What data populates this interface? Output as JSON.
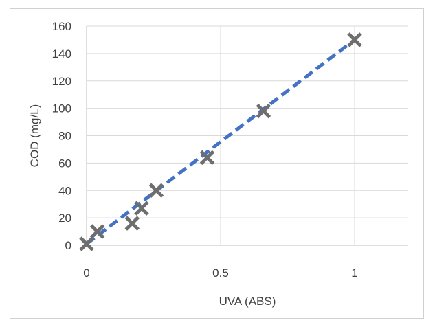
{
  "chart_data": {
    "type": "scatter",
    "title": "",
    "xlabel": "UVA (ABS)",
    "ylabel": "COD (mg/L)",
    "xlim": [
      0,
      1.2
    ],
    "ylim": [
      0,
      160
    ],
    "xticks": [
      0,
      0.5,
      1
    ],
    "xtick_labels": [
      "0",
      "0.5",
      "1"
    ],
    "yticks": [
      0,
      20,
      40,
      60,
      80,
      100,
      120,
      140,
      160
    ],
    "ytick_labels": [
      "0",
      "20",
      "40",
      "60",
      "80",
      "100",
      "120",
      "140",
      "160"
    ],
    "grid": "vertical-and-horizontal",
    "legend": "none",
    "series": [
      {
        "marker": "x",
        "color": "#6e6e6e",
        "points": [
          {
            "x": 0.0,
            "y": 1
          },
          {
            "x": 0.04,
            "y": 10
          },
          {
            "x": 0.17,
            "y": 16
          },
          {
            "x": 0.205,
            "y": 27
          },
          {
            "x": 0.26,
            "y": 40
          },
          {
            "x": 0.45,
            "y": 64
          },
          {
            "x": 0.66,
            "y": 98
          },
          {
            "x": 1.0,
            "y": 150
          }
        ]
      }
    ],
    "trendline": {
      "style": "dashed",
      "color": "#4472c4",
      "x_range": [
        0,
        1.0
      ],
      "y_range": [
        1,
        150
      ]
    }
  }
}
